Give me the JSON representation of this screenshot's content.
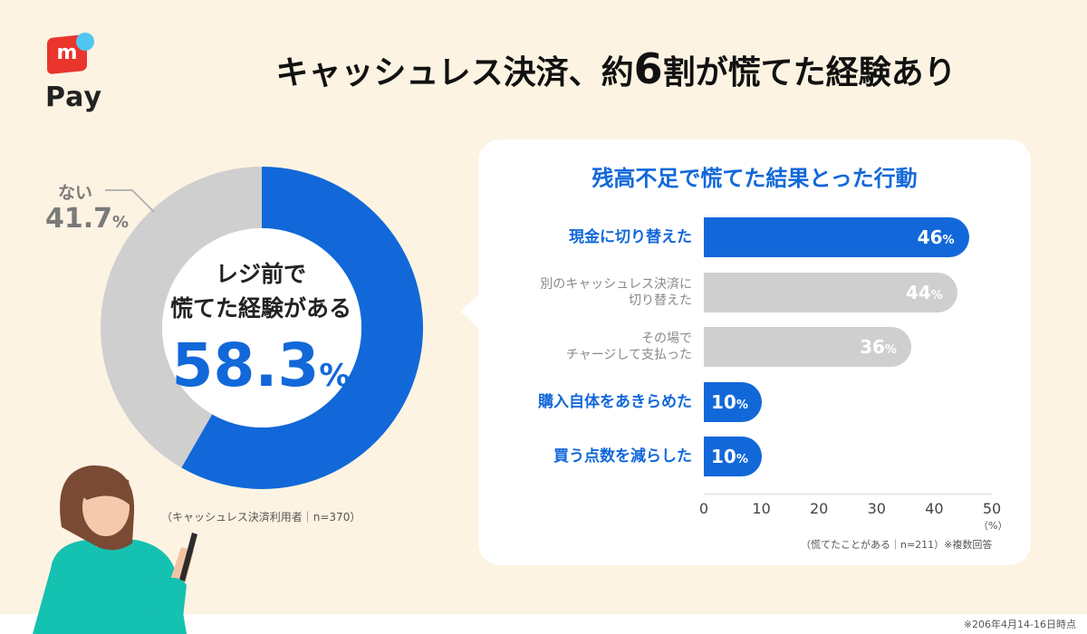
{
  "brand": {
    "logo_mark": "m",
    "name": "Pay"
  },
  "title": {
    "pre": "キャッシュレス決済、約",
    "num": "6",
    "post": "割が慌てた経験あり"
  },
  "colors": {
    "blue": "#1268d9",
    "gray": "#cfcfcf",
    "logo_red": "#ea352d",
    "logo_dot": "#50c6f2",
    "background": "#fdf3e2"
  },
  "donut": {
    "no_label": "ない",
    "no_value": "41.7",
    "yes_line1": "レジ前で",
    "yes_line2": "慌てた経験がある",
    "yes_value": "58.3",
    "percent_sign": "%",
    "note": "（キャッシュレス決済利用者｜n=370）"
  },
  "bars": {
    "title": "残高不足で慌てた結果とった行動",
    "unit": "（%）",
    "note": "（慌てたことがある｜n=211）※複数回答",
    "percent_sign": "%"
  },
  "footnote": "※206年4月14-16日時点",
  "chart_data": [
    {
      "type": "pie",
      "categories": [
        "レジ前で慌てた経験がある",
        "ない"
      ],
      "values": [
        58.3,
        41.7
      ],
      "colors": [
        "#1268d9",
        "#cfcfcf"
      ]
    },
    {
      "type": "bar",
      "title": "残高不足で慌てた結果とった行動",
      "categories": [
        [
          "現金に切り替えた"
        ],
        [
          "別のキャッシュレス決済に",
          "切り替えた"
        ],
        [
          "その場で",
          "チャージして支払った"
        ],
        [
          "購入自体をあきらめた"
        ],
        [
          "買う点数を減らした"
        ]
      ],
      "values": [
        46,
        44,
        36,
        10,
        10
      ],
      "highlight": [
        true,
        false,
        false,
        true,
        true
      ],
      "xlim": [
        0,
        50
      ],
      "xticks": [
        "0",
        "10",
        "20",
        "30",
        "40",
        "50"
      ],
      "xunit": "（%）"
    }
  ]
}
